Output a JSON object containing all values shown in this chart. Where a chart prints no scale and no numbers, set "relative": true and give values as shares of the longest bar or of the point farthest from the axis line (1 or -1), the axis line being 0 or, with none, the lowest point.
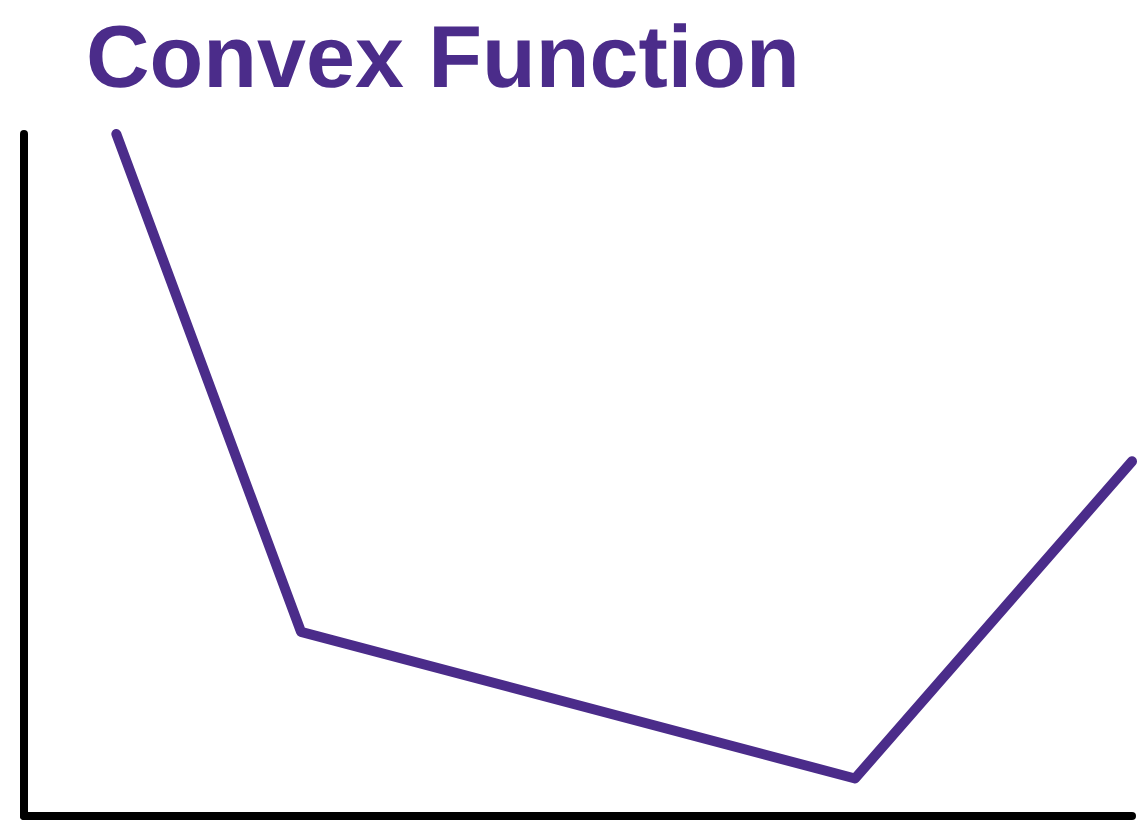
{
  "chart_data": {
    "type": "line",
    "title": "Convex Function",
    "relative": true,
    "categories": [
      null,
      null,
      null,
      null,
      null,
      null,
      null,
      null,
      null,
      null,
      null,
      null,
      null
    ],
    "series": [
      {
        "color": "#4b2c8a",
        "values": [
          null,
          1,
          null,
          0.27,
          null,
          null,
          null,
          null,
          null,
          0.055,
          null,
          null,
          0.52
        ]
      }
    ],
    "grid": false,
    "marker": "none",
    "line_style": "solid"
  }
}
